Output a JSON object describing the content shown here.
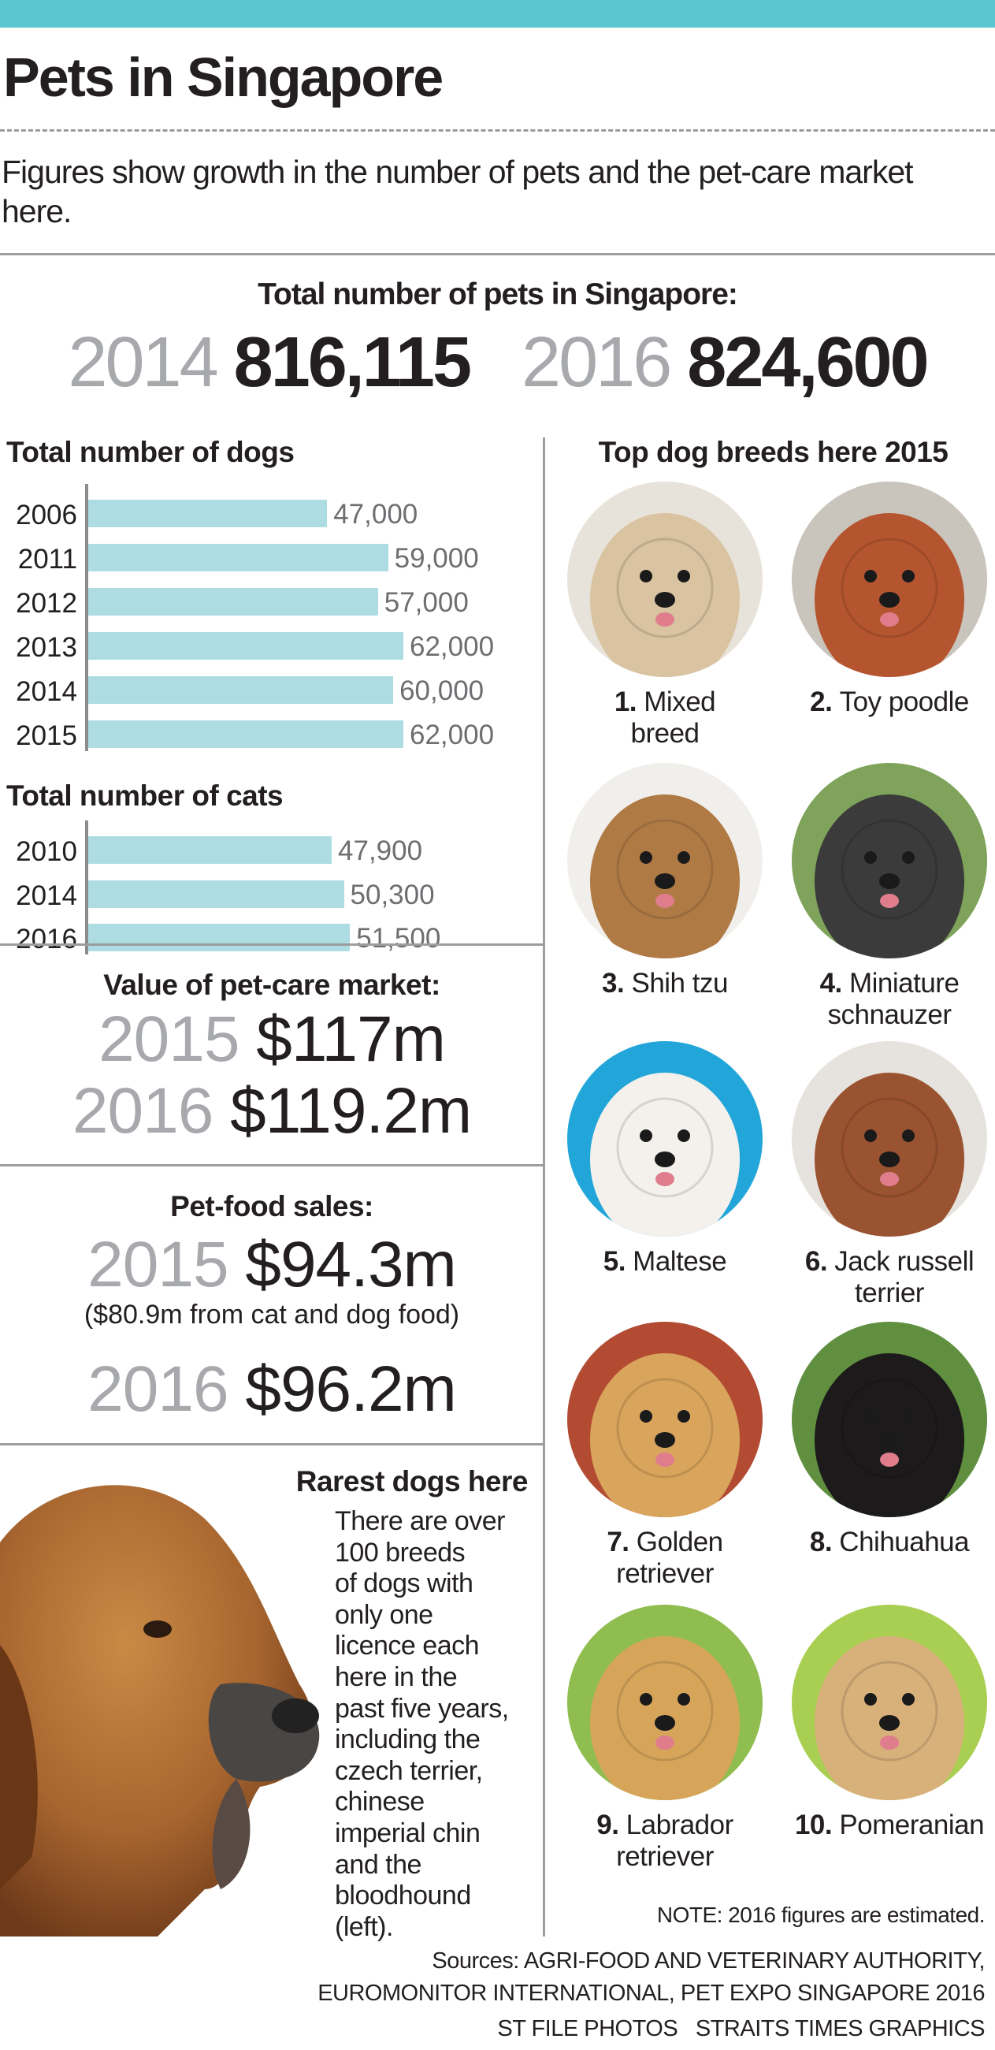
{
  "colors": {
    "header_bar": "#5bc6cf",
    "bar_fill": "#addde3",
    "year_gray": "#a7a9ac",
    "text": "#231f20"
  },
  "header": {
    "title": "Pets in Singapore",
    "subtitle": "Figures show growth in the number of pets and the pet-care market here."
  },
  "total_pets": {
    "heading": "Total number of pets in Singapore:",
    "entries": [
      {
        "year": "2014",
        "value": "816,115"
      },
      {
        "year": "2016",
        "value": "824,600"
      }
    ]
  },
  "chart_data": [
    {
      "type": "bar",
      "orientation": "horizontal",
      "title": "Total number of dogs",
      "categories": [
        "2006",
        "2011",
        "2012",
        "2013",
        "2014",
        "2015"
      ],
      "values": [
        47000,
        59000,
        57000,
        62000,
        60000,
        62000
      ],
      "labels": [
        "47,000",
        "59,000",
        "57,000",
        "62,000",
        "60,000",
        "62,000"
      ],
      "xlim": [
        0,
        62000
      ],
      "grid": false
    },
    {
      "type": "bar",
      "orientation": "horizontal",
      "title": "Total number of cats",
      "categories": [
        "2010",
        "2014",
        "2016"
      ],
      "values": [
        47900,
        50300,
        51500
      ],
      "labels": [
        "47,900",
        "50,300",
        "51,500"
      ],
      "xlim": [
        0,
        62000
      ],
      "grid": false
    }
  ],
  "pet_care_market": {
    "heading": "Value of pet-care market:",
    "entries": [
      {
        "year": "2015",
        "value": "$117m"
      },
      {
        "year": "2016",
        "value": "$119.2m"
      }
    ]
  },
  "pet_food": {
    "heading": "Pet-food sales:",
    "entries": [
      {
        "year": "2015",
        "value": "$94.3m"
      },
      {
        "year": "2016",
        "value": "$96.2m"
      }
    ],
    "note": "($80.9m from cat and dog food)"
  },
  "rarest": {
    "heading": "Rarest dogs here",
    "lines": [
      "There are over",
      "100 breeds",
      "of dogs with",
      "only one",
      "licence each",
      "here in the",
      "past five years,",
      "including the",
      "czech terrier,",
      "chinese",
      "imperial chin",
      "and the",
      "bloodhound",
      "(left)."
    ]
  },
  "breeds": {
    "heading": "Top dog breeds here 2015",
    "items": [
      {
        "rank": "1.",
        "name": "Mixed breed",
        "lines": [
          "Mixed",
          "breed"
        ],
        "photo": "mixed-breed-dog-photo",
        "bg": "#e8e3da",
        "fur": "#d9c3a0"
      },
      {
        "rank": "2.",
        "name": "Toy poodle",
        "lines": [
          "Toy poodle"
        ],
        "photo": "toy-poodle-photo",
        "bg": "#c9c4bc",
        "fur": "#b5552f"
      },
      {
        "rank": "3.",
        "name": "Shih tzu",
        "lines": [
          "Shih tzu"
        ],
        "photo": "shih-tzu-photo",
        "bg": "#f1efeb",
        "fur": "#b07a45"
      },
      {
        "rank": "4.",
        "name": "Miniature schnauzer",
        "lines": [
          "Miniature",
          "schnauzer"
        ],
        "photo": "miniature-schnauzer-photo",
        "bg": "#7fa35a",
        "fur": "#3b3b3b"
      },
      {
        "rank": "5.",
        "name": "Maltese",
        "lines": [
          "Maltese"
        ],
        "photo": "maltese-photo",
        "bg": "#22a6d9",
        "fur": "#f4f1ec"
      },
      {
        "rank": "6.",
        "name": "Jack russell terrier",
        "lines": [
          "Jack russell",
          "terrier"
        ],
        "photo": "jack-russell-terrier-photo",
        "bg": "#e6e2dd",
        "fur": "#9a5330"
      },
      {
        "rank": "7.",
        "name": "Golden retriever",
        "lines": [
          "Golden",
          "retriever"
        ],
        "photo": "golden-retriever-photo",
        "bg": "#b24b32",
        "fur": "#d9a45c"
      },
      {
        "rank": "8.",
        "name": "Chihuahua",
        "lines": [
          "Chihuahua"
        ],
        "photo": "chihuahua-photo",
        "bg": "#5f8f3f",
        "fur": "#1d1a1c"
      },
      {
        "rank": "9.",
        "name": "Labrador retriever",
        "lines": [
          "Labrador",
          "retriever"
        ],
        "photo": "labrador-retriever-photo",
        "bg": "#8fbd4f",
        "fur": "#d6a55a"
      },
      {
        "rank": "10.",
        "name": "Pomeranian",
        "lines": [
          "Pomeranian"
        ],
        "photo": "pomeranian-photo",
        "bg": "#a9cf52",
        "fur": "#d8b07a"
      }
    ]
  },
  "footer": {
    "note": "NOTE: 2016 figures are estimated.",
    "sources_line1": "Sources: AGRI-FOOD AND VETERINARY AUTHORITY,",
    "sources_line2": "EUROMONITOR INTERNATIONAL, PET EXPO SINGAPORE 2016",
    "credits": "ST FILE PHOTOS   STRAITS TIMES GRAPHICS"
  }
}
